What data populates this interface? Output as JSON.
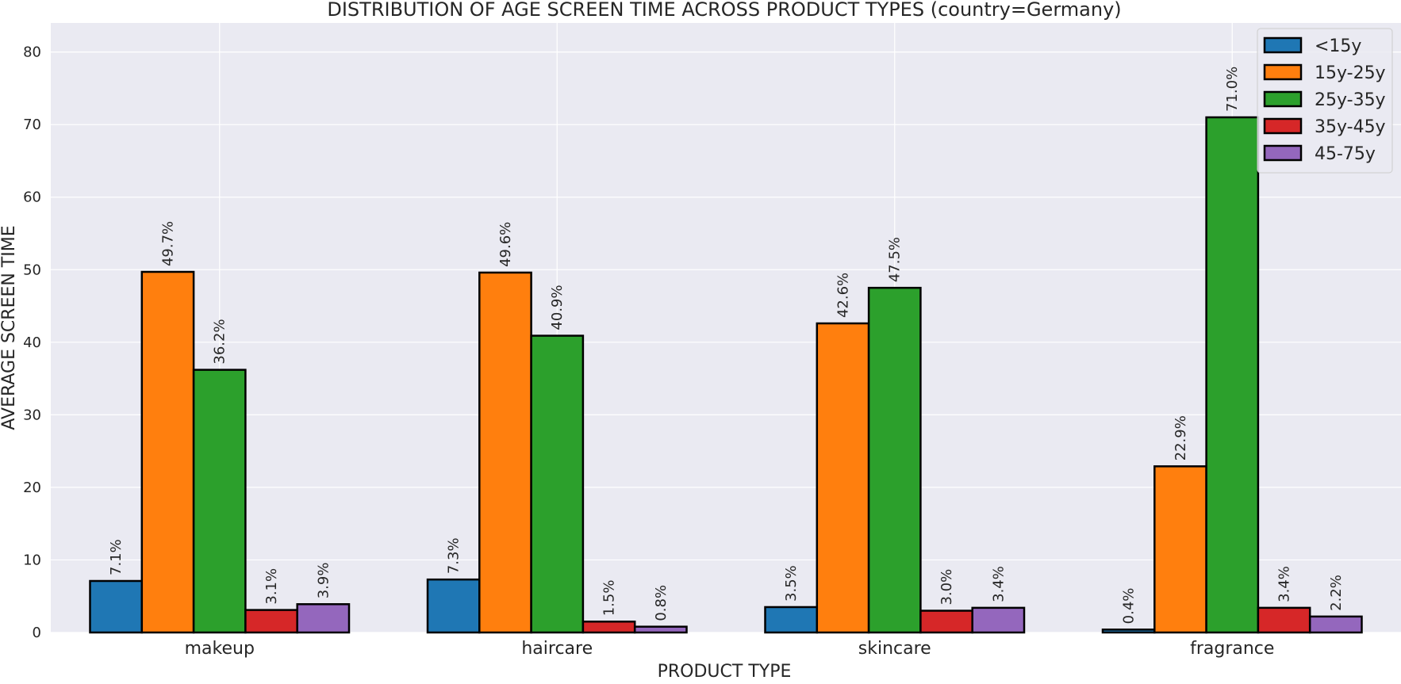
{
  "chart_data": {
    "type": "bar",
    "title": "DISTRIBUTION OF AGE SCREEN TIME ACROSS PRODUCT TYPES (country=Germany)",
    "xlabel": "PRODUCT TYPE",
    "ylabel": "AVERAGE SCREEN TIME",
    "ylim": [
      0,
      84
    ],
    "yticks": [
      0,
      10,
      20,
      30,
      40,
      50,
      60,
      70,
      80
    ],
    "grid": true,
    "legend_position": "top-right",
    "categories": [
      "makeup",
      "haircare",
      "skincare",
      "fragrance"
    ],
    "series": [
      {
        "name": "<15y",
        "color": "#1f77b4",
        "values": [
          7.1,
          7.3,
          3.5,
          0.4
        ],
        "labels": [
          "7.1%",
          "7.3%",
          "3.5%",
          "0.4%"
        ]
      },
      {
        "name": "15y-25y",
        "color": "#ff7f0e",
        "values": [
          49.7,
          49.6,
          42.6,
          22.9
        ],
        "labels": [
          "49.7%",
          "49.6%",
          "42.6%",
          "22.9%"
        ]
      },
      {
        "name": "25y-35y",
        "color": "#2ca02c",
        "values": [
          36.2,
          40.9,
          47.5,
          71.0
        ],
        "labels": [
          "36.2%",
          "40.9%",
          "47.5%",
          "71.0%"
        ]
      },
      {
        "name": "35y-45y",
        "color": "#d62728",
        "values": [
          3.1,
          1.5,
          3.0,
          3.4
        ],
        "labels": [
          "3.1%",
          "1.5%",
          "3.0%",
          "3.4%"
        ]
      },
      {
        "name": "45-75y",
        "color": "#9467bd",
        "values": [
          3.9,
          0.8,
          3.4,
          2.2
        ],
        "labels": [
          "3.9%",
          "0.8%",
          "3.4%",
          "2.2%"
        ]
      }
    ]
  }
}
